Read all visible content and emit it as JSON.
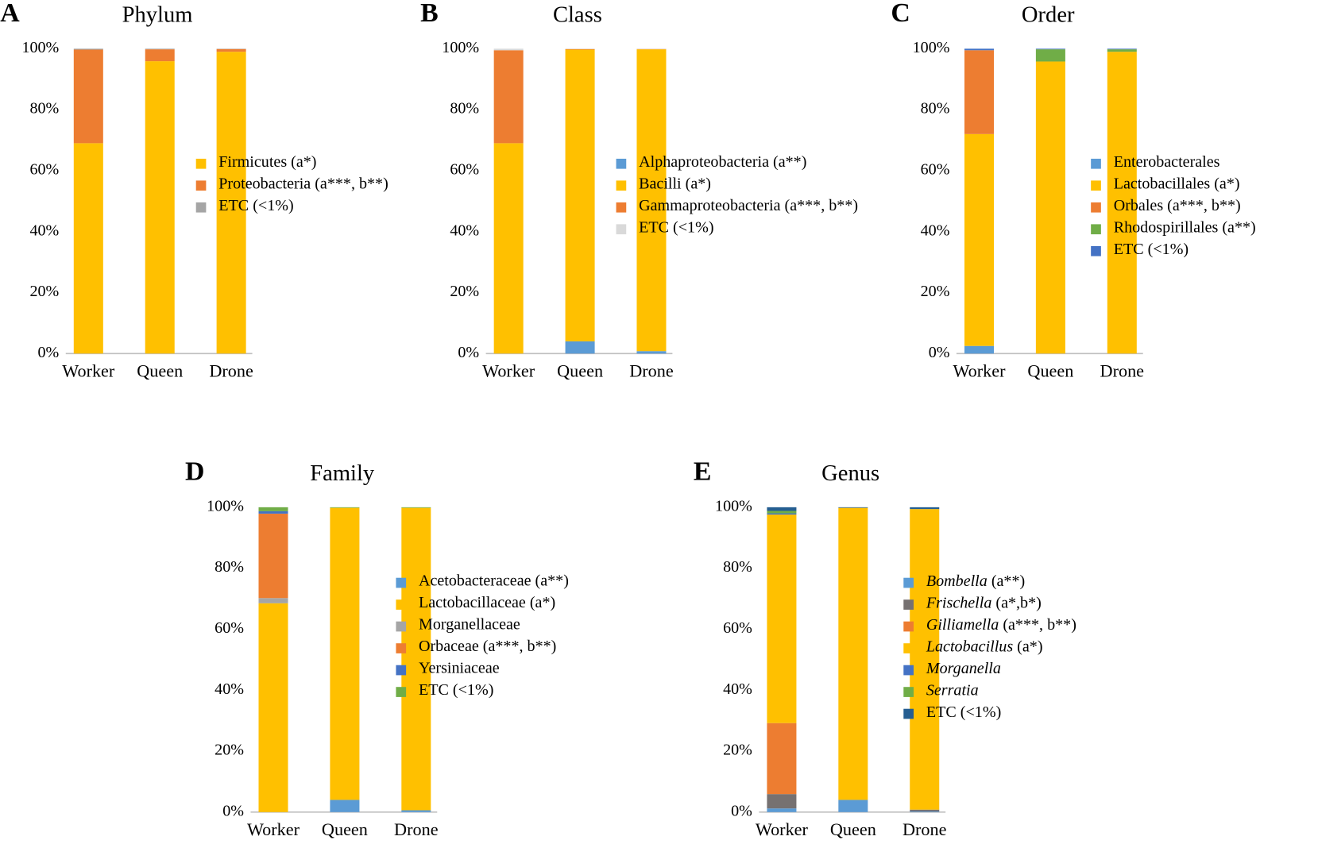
{
  "chart_data": [
    {
      "type": "bar",
      "stacked": true,
      "panel": "A",
      "title": "Phylum",
      "categories": [
        "Worker",
        "Queen",
        "Drone"
      ],
      "ylim": [
        0,
        100
      ],
      "yticks": [
        {
          "value": 0,
          "label": "0%"
        },
        {
          "value": 20,
          "label": "20%"
        },
        {
          "value": 40,
          "label": "40%"
        },
        {
          "value": 60,
          "label": "60%"
        },
        {
          "value": 80,
          "label": "80%"
        },
        {
          "value": 100,
          "label": "100%"
        }
      ],
      "series": [
        {
          "name": "Firmicutes (a*)",
          "color": "#ffc000",
          "values": [
            69,
            95.9,
            99.0
          ]
        },
        {
          "name": "Proteobacteria (a***, b**)",
          "color": "#ed7d31",
          "values": [
            30.7,
            3.9,
            0.9
          ]
        },
        {
          "name": "ETC (<1%)",
          "color": "#a5a5a5",
          "values": [
            0.3,
            0.2,
            0.1
          ]
        }
      ]
    },
    {
      "type": "bar",
      "stacked": true,
      "panel": "B",
      "title": "Class",
      "categories": [
        "Worker",
        "Queen",
        "Drone"
      ],
      "ylim": [
        0,
        100
      ],
      "yticks": [
        {
          "value": 0,
          "label": "0%"
        },
        {
          "value": 20,
          "label": "20%"
        },
        {
          "value": 40,
          "label": "40%"
        },
        {
          "value": 60,
          "label": "60%"
        },
        {
          "value": 80,
          "label": "80%"
        },
        {
          "value": 100,
          "label": "100%"
        }
      ],
      "series": [
        {
          "name": "Alphaproteobacteria (a**)",
          "color": "#5b9bd5",
          "values": [
            0,
            4,
            0.8
          ]
        },
        {
          "name": "Bacilli (a*)",
          "color": "#ffc000",
          "values": [
            69,
            95.7,
            99
          ]
        },
        {
          "name": "Gammaproteobacteria (a***, b**)",
          "color": "#ed7d31",
          "values": [
            30.5,
            0.2,
            0.1
          ]
        },
        {
          "name": "ETC (<1%)",
          "color": "#d9d9d9",
          "values": [
            0.5,
            0.1,
            0.1
          ]
        }
      ]
    },
    {
      "type": "bar",
      "stacked": true,
      "panel": "C",
      "title": "Order",
      "categories": [
        "Worker",
        "Queen",
        "Drone"
      ],
      "ylim": [
        0,
        100
      ],
      "yticks": [
        {
          "value": 0,
          "label": "0%"
        },
        {
          "value": 20,
          "label": "20%"
        },
        {
          "value": 40,
          "label": "40%"
        },
        {
          "value": 60,
          "label": "60%"
        },
        {
          "value": 80,
          "label": "80%"
        },
        {
          "value": 100,
          "label": "100%"
        }
      ],
      "series": [
        {
          "name": "Enterobacterales",
          "color": "#5b9bd5",
          "values": [
            2.5,
            0,
            0
          ]
        },
        {
          "name": "Lactobacillales (a*)",
          "color": "#ffc000",
          "values": [
            69.5,
            95.8,
            99
          ]
        },
        {
          "name": "Orbales (a***, b**)",
          "color": "#ed7d31",
          "values": [
            27.5,
            0,
            0
          ]
        },
        {
          "name": "Rhodospirillales (a**)",
          "color": "#70ad47",
          "values": [
            0,
            4,
            0.8
          ]
        },
        {
          "name": "ETC (<1%)",
          "color": "#4472c4",
          "values": [
            0.5,
            0.2,
            0.2
          ]
        }
      ]
    },
    {
      "type": "bar",
      "stacked": true,
      "panel": "D",
      "title": "Family",
      "categories": [
        "Worker",
        "Queen",
        "Drone"
      ],
      "ylim": [
        0,
        100
      ],
      "yticks": [
        {
          "value": 0,
          "label": "0%"
        },
        {
          "value": 20,
          "label": "20%"
        },
        {
          "value": 40,
          "label": "40%"
        },
        {
          "value": 60,
          "label": "60%"
        },
        {
          "value": 80,
          "label": "80%"
        },
        {
          "value": 100,
          "label": "100%"
        }
      ],
      "series": [
        {
          "name": "Acetobacteraceae (a**)",
          "color": "#5b9bd5",
          "values": [
            0,
            4,
            0.6
          ]
        },
        {
          "name": "Lactobacillaceae (a*)",
          "color": "#ffc000",
          "values": [
            68.5,
            95.8,
            99.2
          ]
        },
        {
          "name": "Morganellaceae",
          "color": "#a5a5a5",
          "values": [
            1.7,
            0,
            0
          ]
        },
        {
          "name": "Orbaceae (a***, b**)",
          "color": "#ed7d31",
          "values": [
            27.7,
            0,
            0
          ]
        },
        {
          "name": "Yersiniaceae",
          "color": "#4472c4",
          "values": [
            0.8,
            0,
            0
          ]
        },
        {
          "name": "ETC (<1%)",
          "color": "#70ad47",
          "values": [
            1.3,
            0.2,
            0.2
          ]
        }
      ]
    },
    {
      "type": "bar",
      "stacked": true,
      "panel": "E",
      "title": "Genus",
      "categories": [
        "Worker",
        "Queen",
        "Drone"
      ],
      "ylim": [
        0,
        100
      ],
      "yticks": [
        {
          "value": 0,
          "label": "0%"
        },
        {
          "value": 20,
          "label": "20%"
        },
        {
          "value": 40,
          "label": "40%"
        },
        {
          "value": 60,
          "label": "60%"
        },
        {
          "value": 80,
          "label": "80%"
        },
        {
          "value": 100,
          "label": "100%"
        }
      ],
      "italic_names": true,
      "series": [
        {
          "name": "Bombella (a**)",
          "color": "#5b9bd5",
          "values": [
            1.2,
            4,
            0.2
          ]
        },
        {
          "name": "Frischella (a*,b*)",
          "color": "#767171",
          "values": [
            4.7,
            0,
            0.6
          ]
        },
        {
          "name": "Gilliamella (a***, b**)",
          "color": "#ed7d31",
          "values": [
            23.3,
            0,
            0
          ]
        },
        {
          "name": "Lactobacillus (a*)",
          "color": "#ffc000",
          "values": [
            68.4,
            95.8,
            98.6
          ]
        },
        {
          "name": "Morganella",
          "color": "#4472c4",
          "values": [
            0.4,
            0,
            0
          ]
        },
        {
          "name": "Serratia",
          "color": "#70ad47",
          "values": [
            0.8,
            0,
            0
          ]
        },
        {
          "name": "ETC (<1%)",
          "color": "#255e91",
          "values": [
            1.2,
            0.2,
            0.6
          ]
        }
      ]
    }
  ]
}
